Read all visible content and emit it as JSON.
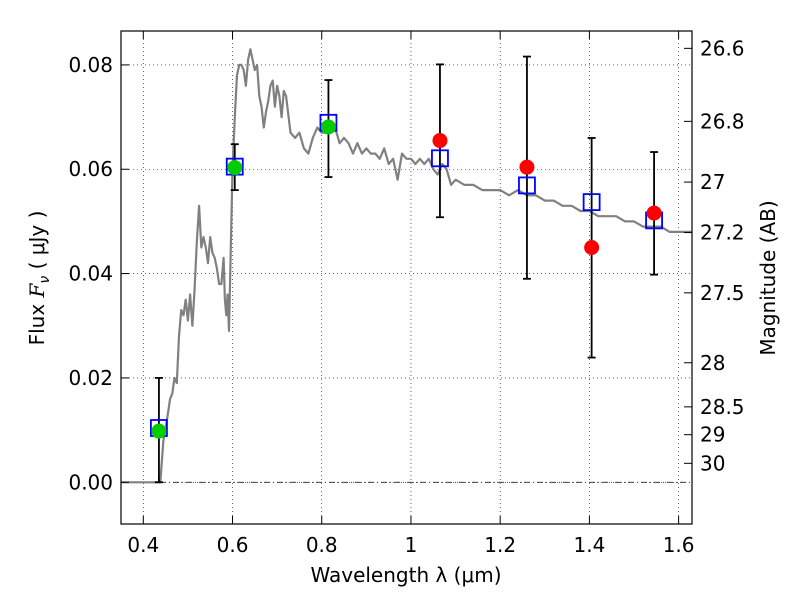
{
  "chart_data": {
    "type": "scatter",
    "xlabel": "Wavelength  λ (μm)",
    "ylabel_left": {
      "text": "Flux  ",
      "math": "F",
      "sub": "ν",
      "unit": " ( μJy )"
    },
    "ylabel_right": "Magnitude (AB)",
    "xlim": [
      0.35,
      1.63
    ],
    "ylim": [
      -0.008,
      0.0865
    ],
    "grid": true,
    "x_ticks": [
      {
        "value": 0.4,
        "label": "0.4"
      },
      {
        "value": 0.6,
        "label": "0.6"
      },
      {
        "value": 0.8,
        "label": "0.8"
      },
      {
        "value": 1.0,
        "label": "1"
      },
      {
        "value": 1.2,
        "label": "1.2"
      },
      {
        "value": 1.4,
        "label": "1.4"
      },
      {
        "value": 1.6,
        "label": "1.6"
      }
    ],
    "y_ticks": [
      {
        "value": 0.0,
        "label": "0.00"
      },
      {
        "value": 0.02,
        "label": "0.02"
      },
      {
        "value": 0.04,
        "label": "0.04"
      },
      {
        "value": 0.06,
        "label": "0.06"
      },
      {
        "value": 0.08,
        "label": "0.08"
      }
    ],
    "right_ticks": [
      {
        "mag": 26.6,
        "label": "26.6"
      },
      {
        "mag": 26.8,
        "label": "26.8"
      },
      {
        "mag": 27.0,
        "label": "27"
      },
      {
        "mag": 27.2,
        "label": "27.2"
      },
      {
        "mag": 27.5,
        "label": "27.5"
      },
      {
        "mag": 28.0,
        "label": "28"
      },
      {
        "mag": 28.5,
        "label": "28.5"
      },
      {
        "mag": 29.0,
        "label": "29"
      },
      {
        "mag": 30.0,
        "label": "30"
      }
    ],
    "sed_model": {
      "color": "#808080",
      "x": [
        0.35,
        0.41,
        0.435,
        0.438,
        0.445,
        0.455,
        0.46,
        0.465,
        0.47,
        0.475,
        0.48,
        0.485,
        0.49,
        0.495,
        0.5,
        0.505,
        0.51,
        0.515,
        0.52,
        0.525,
        0.53,
        0.535,
        0.54,
        0.545,
        0.55,
        0.555,
        0.56,
        0.565,
        0.57,
        0.575,
        0.58,
        0.583,
        0.586,
        0.589,
        0.592,
        0.6,
        0.605,
        0.61,
        0.615,
        0.62,
        0.625,
        0.63,
        0.635,
        0.64,
        0.645,
        0.65,
        0.655,
        0.66,
        0.665,
        0.67,
        0.675,
        0.68,
        0.685,
        0.69,
        0.695,
        0.7,
        0.705,
        0.71,
        0.715,
        0.72,
        0.73,
        0.74,
        0.75,
        0.76,
        0.77,
        0.78,
        0.79,
        0.8,
        0.81,
        0.82,
        0.83,
        0.84,
        0.85,
        0.86,
        0.87,
        0.88,
        0.89,
        0.9,
        0.91,
        0.92,
        0.93,
        0.94,
        0.95,
        0.96,
        0.97,
        0.98,
        0.99,
        1.0,
        1.01,
        1.02,
        1.03,
        1.04,
        1.05,
        1.06,
        1.07,
        1.08,
        1.09,
        1.1,
        1.12,
        1.14,
        1.16,
        1.18,
        1.2,
        1.22,
        1.24,
        1.26,
        1.28,
        1.3,
        1.32,
        1.34,
        1.36,
        1.38,
        1.4,
        1.42,
        1.44,
        1.46,
        1.48,
        1.5,
        1.52,
        1.54,
        1.56,
        1.58,
        1.6,
        1.62,
        1.63
      ],
      "y": [
        0.0,
        0.0,
        0.0,
        0.0,
        0.008,
        0.013,
        0.016,
        0.017,
        0.02,
        0.019,
        0.028,
        0.033,
        0.032,
        0.035,
        0.031,
        0.036,
        0.03,
        0.037,
        0.046,
        0.053,
        0.045,
        0.047,
        0.045,
        0.042,
        0.047,
        0.044,
        0.043,
        0.041,
        0.038,
        0.038,
        0.043,
        0.035,
        0.032,
        0.036,
        0.029,
        0.06,
        0.07,
        0.078,
        0.08,
        0.08,
        0.079,
        0.076,
        0.081,
        0.083,
        0.081,
        0.079,
        0.08,
        0.074,
        0.072,
        0.068,
        0.071,
        0.073,
        0.076,
        0.077,
        0.072,
        0.076,
        0.074,
        0.07,
        0.075,
        0.074,
        0.067,
        0.066,
        0.067,
        0.064,
        0.063,
        0.066,
        0.068,
        0.067,
        0.067,
        0.067,
        0.068,
        0.065,
        0.066,
        0.065,
        0.063,
        0.065,
        0.063,
        0.064,
        0.063,
        0.063,
        0.062,
        0.064,
        0.061,
        0.062,
        0.058,
        0.063,
        0.062,
        0.062,
        0.061,
        0.062,
        0.061,
        0.062,
        0.06,
        0.059,
        0.061,
        0.06,
        0.057,
        0.058,
        0.057,
        0.057,
        0.056,
        0.056,
        0.056,
        0.055,
        0.056,
        0.055,
        0.055,
        0.054,
        0.054,
        0.053,
        0.053,
        0.052,
        0.052,
        0.051,
        0.051,
        0.051,
        0.05,
        0.05,
        0.049,
        0.049,
        0.049,
        0.048,
        0.048,
        0.048,
        0.048
      ]
    },
    "model_photometry": {
      "marker": "square",
      "color": "#0000ff",
      "points": [
        {
          "x": 0.435,
          "y": 0.0104
        },
        {
          "x": 0.605,
          "y": 0.0605
        },
        {
          "x": 0.815,
          "y": 0.0689
        },
        {
          "x": 1.065,
          "y": 0.0621
        },
        {
          "x": 1.26,
          "y": 0.0569
        },
        {
          "x": 1.405,
          "y": 0.0537
        },
        {
          "x": 1.545,
          "y": 0.0502
        }
      ]
    },
    "observed_detections": {
      "marker": "circle",
      "color": "#00cc00",
      "points": [
        {
          "x": 0.435,
          "y": 0.0098,
          "err_lo": 0.0098,
          "err_hi": 0.0102
        },
        {
          "x": 0.605,
          "y": 0.0603,
          "err_lo": 0.0043,
          "err_hi": 0.0045
        },
        {
          "x": 0.815,
          "y": 0.0681,
          "err_lo": 0.0096,
          "err_hi": 0.009
        }
      ]
    },
    "observed_other": {
      "marker": "circle",
      "color": "#ff0000",
      "points": [
        {
          "x": 1.065,
          "y": 0.0655,
          "err_lo": 0.0147,
          "err_hi": 0.0146
        },
        {
          "x": 1.26,
          "y": 0.0604,
          "err_lo": 0.0214,
          "err_hi": 0.0212
        },
        {
          "x": 1.405,
          "y": 0.045,
          "err_lo": 0.0211,
          "err_hi": 0.021
        },
        {
          "x": 1.545,
          "y": 0.0516,
          "err_lo": 0.0118,
          "err_hi": 0.0117
        }
      ]
    }
  }
}
